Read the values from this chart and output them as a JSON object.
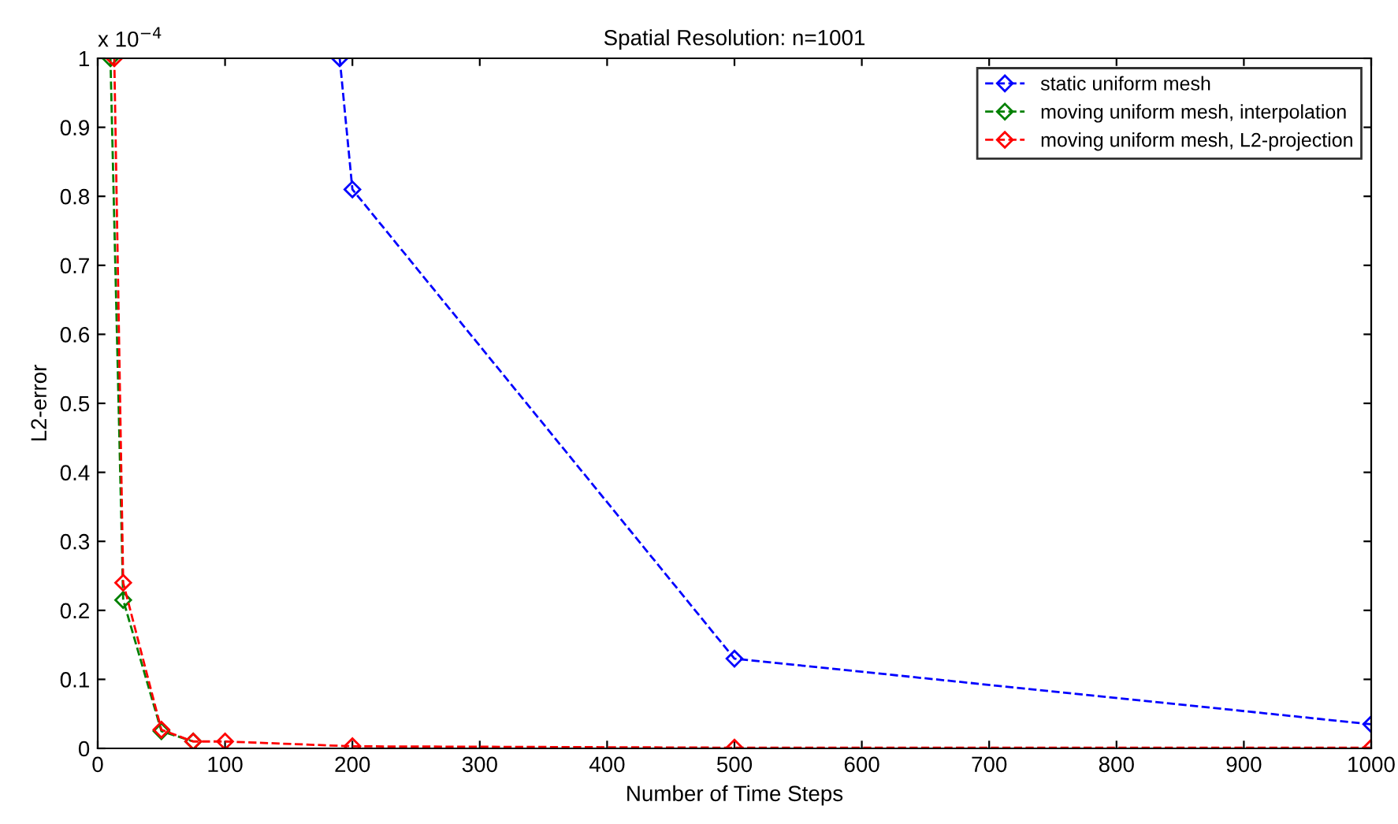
{
  "chart_data": {
    "type": "line",
    "title": "Spatial Resolution: n=1001",
    "xlabel": "Number of Time Steps",
    "ylabel": "L2-error",
    "annotations": [
      "x 10$^{−4}$"
    ],
    "series": [
      {
        "name": "static uniform mesh",
        "color": "#0000ff",
        "x": [
          190,
          200,
          500,
          1000
        ],
        "values": [
          1.0,
          0.81,
          0.13,
          0.035
        ]
      },
      {
        "name": "moving uniform mesh, interpolation",
        "color": "#008000",
        "x": [
          10,
          20,
          50,
          75
        ],
        "values": [
          1.0,
          0.215,
          0.025,
          0.01
        ]
      },
      {
        "name": "moving uniform mesh, L2-projection",
        "color": "#ff0000",
        "x": [
          13,
          20,
          50,
          75,
          100,
          200,
          500,
          1000
        ],
        "values": [
          1.0,
          0.24,
          0.027,
          0.01,
          0.01,
          0.003,
          0.001,
          0.001
        ]
      }
    ],
    "xlim": [
      0,
      1000
    ],
    "xticks": [
      0,
      100,
      200,
      300,
      400,
      500,
      600,
      700,
      800,
      900,
      1000
    ],
    "ylim": [
      0,
      1
    ],
    "yticks": [
      0,
      0.1,
      0.2,
      0.3,
      0.4,
      0.5,
      0.6,
      0.7,
      0.8,
      0.9,
      1
    ],
    "grid": false,
    "legend": "top right",
    "marker": "diamond",
    "line_style": "dashed"
  }
}
